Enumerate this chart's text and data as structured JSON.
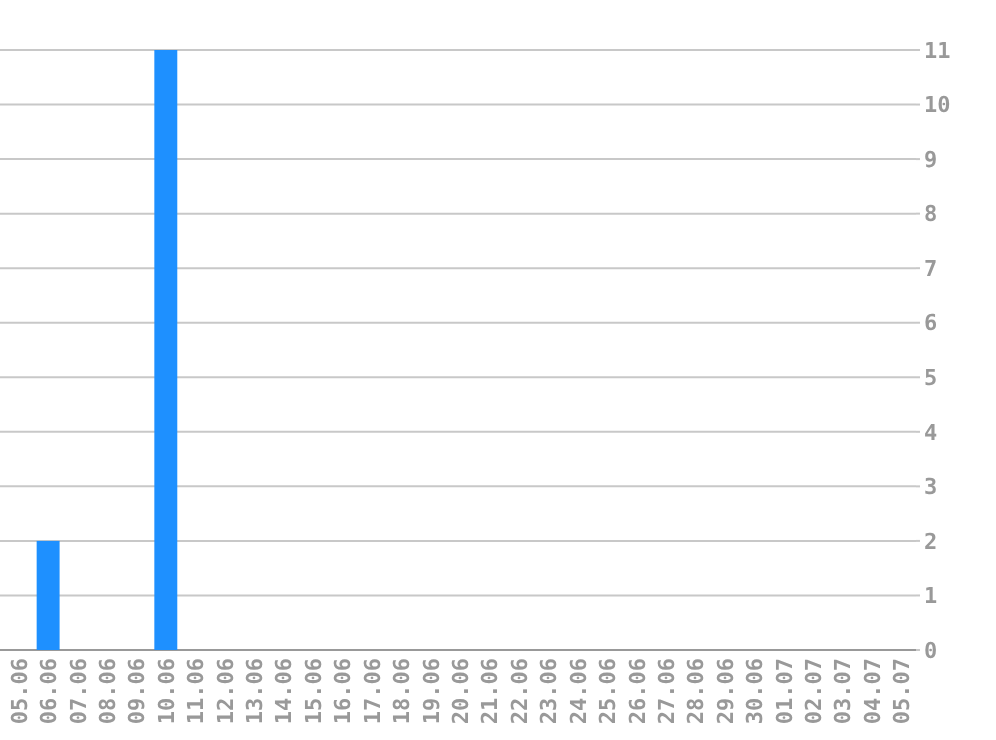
{
  "chart_data": {
    "type": "bar",
    "categories": [
      "05.06",
      "06.06",
      "07.06",
      "08.06",
      "09.06",
      "10.06",
      "11.06",
      "12.06",
      "13.06",
      "14.06",
      "15.06",
      "16.06",
      "17.06",
      "18.06",
      "19.06",
      "20.06",
      "21.06",
      "22.06",
      "23.06",
      "24.06",
      "25.06",
      "26.06",
      "27.06",
      "28.06",
      "29.06",
      "30.06",
      "01.07",
      "02.07",
      "03.07",
      "04.07",
      "05.07"
    ],
    "values": [
      0,
      2,
      0,
      0,
      0,
      11,
      0,
      0,
      0,
      0,
      0,
      0,
      0,
      0,
      0,
      0,
      0,
      0,
      0,
      0,
      0,
      0,
      0,
      0,
      0,
      0,
      0,
      0,
      0,
      0,
      0
    ],
    "color": "#1e90ff",
    "ylim": [
      0,
      11
    ],
    "yticks": [
      0,
      1,
      2,
      3,
      4,
      5,
      6,
      7,
      8,
      9,
      10,
      11
    ],
    "grid": "y"
  }
}
